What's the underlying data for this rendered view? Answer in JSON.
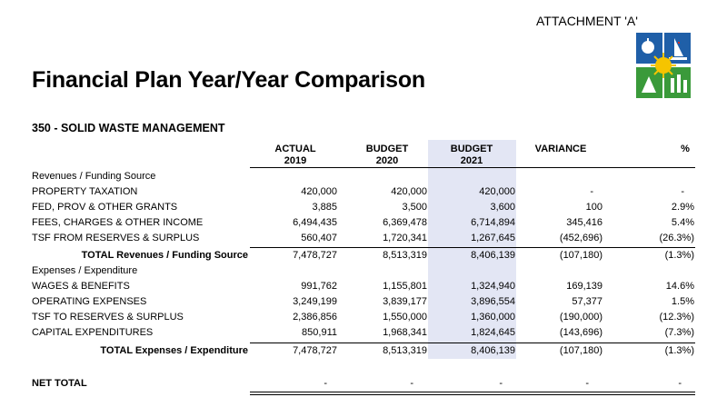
{
  "attachment": "ATTACHMENT 'A'",
  "title": "Financial Plan Year/Year Comparison",
  "department": "350 - SOLID WASTE MANAGEMENT",
  "headers": {
    "actual": [
      "ACTUAL",
      "2019"
    ],
    "budget2020": [
      "BUDGET",
      "2020"
    ],
    "budget2021": [
      "BUDGET",
      "2021"
    ],
    "variance": "VARIANCE",
    "pct": "%"
  },
  "revenues": {
    "section": "Revenues / Funding Source",
    "rows": [
      {
        "label": "PROPERTY TAXATION",
        "actual": "420,000",
        "b2020": "420,000",
        "b2021": "420,000",
        "variance": "-",
        "pct": "-"
      },
      {
        "label": "FED, PROV & OTHER GRANTS",
        "actual": "3,885",
        "b2020": "3,500",
        "b2021": "3,600",
        "variance": "100",
        "pct": "2.9%"
      },
      {
        "label": "FEES, CHARGES & OTHER INCOME",
        "actual": "6,494,435",
        "b2020": "6,369,478",
        "b2021": "6,714,894",
        "variance": "345,416",
        "pct": "5.4%"
      },
      {
        "label": "TSF FROM RESERVES & SURPLUS",
        "actual": "560,407",
        "b2020": "1,720,341",
        "b2021": "1,267,645",
        "variance": "(452,696)",
        "pct": "(26.3%)"
      }
    ],
    "total": {
      "label": "TOTAL Revenues / Funding Source",
      "actual": "7,478,727",
      "b2020": "8,513,319",
      "b2021": "8,406,139",
      "variance": "(107,180)",
      "pct": "(1.3%)"
    }
  },
  "expenses": {
    "section": "Expenses / Expenditure",
    "rows": [
      {
        "label": "WAGES & BENEFITS",
        "actual": "991,762",
        "b2020": "1,155,801",
        "b2021": "1,324,940",
        "variance": "169,139",
        "pct": "14.6%"
      },
      {
        "label": "OPERATING EXPENSES",
        "actual": "3,249,199",
        "b2020": "3,839,177",
        "b2021": "3,896,554",
        "variance": "57,377",
        "pct": "1.5%"
      },
      {
        "label": "TSF TO RESERVES & SURPLUS",
        "actual": "2,386,856",
        "b2020": "1,550,000",
        "b2021": "1,360,000",
        "variance": "(190,000)",
        "pct": "(12.3%)"
      },
      {
        "label": "CAPITAL EXPENDITURES",
        "actual": "850,911",
        "b2020": "1,968,341",
        "b2021": "1,824,645",
        "variance": "(143,696)",
        "pct": "(7.3%)"
      }
    ],
    "total": {
      "label": "TOTAL Expenses / Expenditure",
      "actual": "7,478,727",
      "b2020": "8,513,319",
      "b2021": "8,406,139",
      "variance": "(107,180)",
      "pct": "(1.3%)"
    }
  },
  "net_total": {
    "label": "NET TOTAL",
    "actual": "-",
    "b2020": "-",
    "b2021": "-",
    "variance": "-",
    "pct": "-"
  },
  "colors": {
    "highlight": "#e3e6f4",
    "logo_blue": "#1f5fa8",
    "logo_green": "#3a9a3a",
    "logo_yellow": "#f5c400",
    "logo_red": "#d32a2a"
  }
}
